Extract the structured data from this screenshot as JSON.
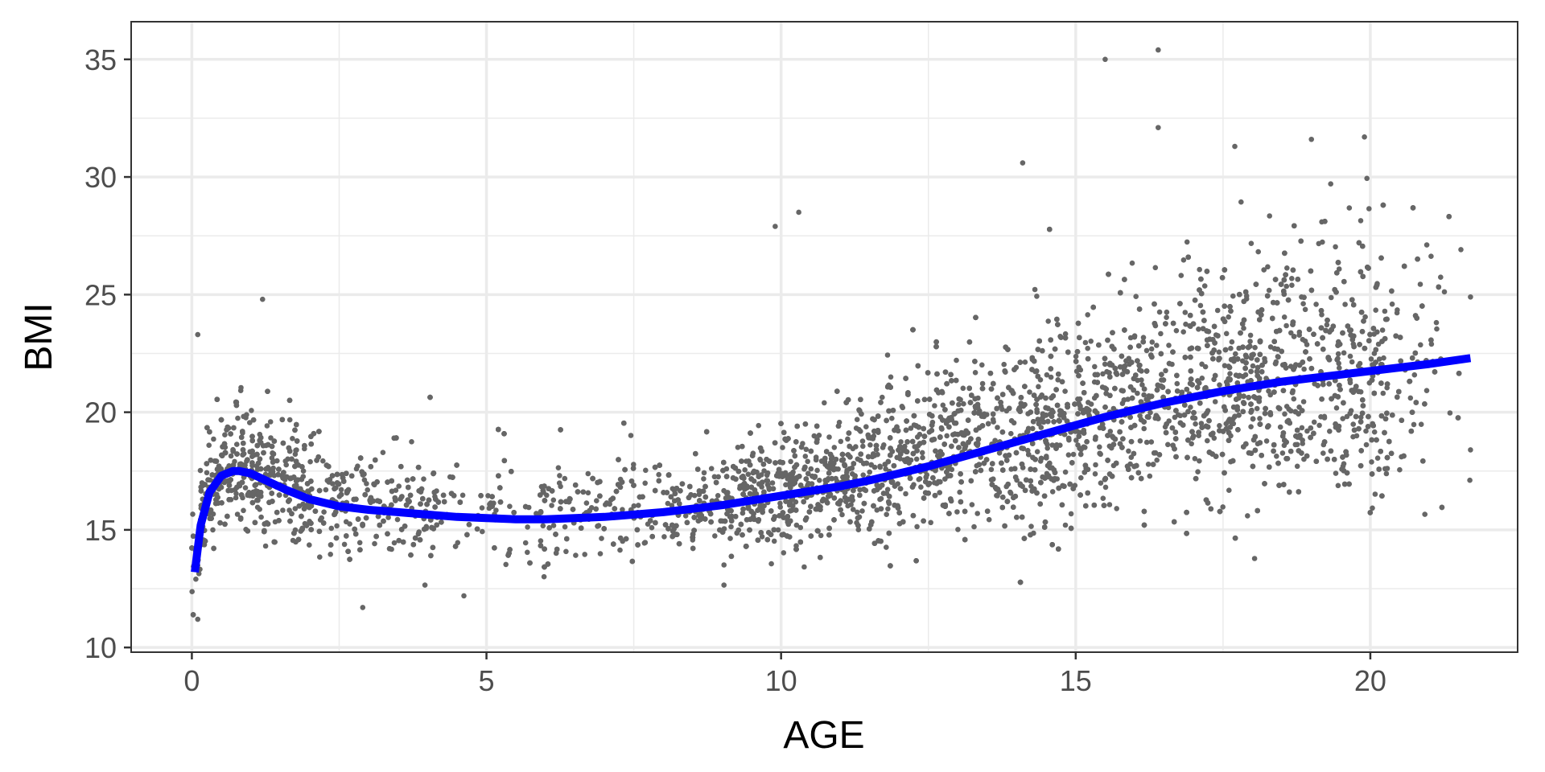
{
  "chart_data": {
    "type": "scatter",
    "xlabel": "AGE",
    "ylabel": "BMI",
    "xlim": [
      -1.03,
      22.5
    ],
    "ylim": [
      9.8,
      36.6
    ],
    "x_ticks": [
      0,
      5,
      10,
      15,
      20
    ],
    "y_ticks": [
      10,
      15,
      20,
      25,
      30,
      35
    ],
    "grid": true,
    "legend": "none",
    "series": [
      {
        "type": "scatter",
        "color": "#666666",
        "approx_points": 7000,
        "age_range": [
          0,
          21.7
        ],
        "notable_points": [
          {
            "x": 0.1,
            "y": 11.2
          },
          {
            "x": 0.1,
            "y": 23.3
          },
          {
            "x": 1.2,
            "y": 24.8
          },
          {
            "x": 2.9,
            "y": 11.7
          },
          {
            "x": 9.9,
            "y": 27.9
          },
          {
            "x": 10.3,
            "y": 28.5
          },
          {
            "x": 14.1,
            "y": 30.6
          },
          {
            "x": 15.5,
            "y": 35.0
          },
          {
            "x": 16.4,
            "y": 35.4
          },
          {
            "x": 16.4,
            "y": 32.1
          },
          {
            "x": 17.7,
            "y": 31.3
          },
          {
            "x": 19.0,
            "y": 31.6
          },
          {
            "x": 19.9,
            "y": 31.7
          },
          {
            "x": 21.7,
            "y": 24.9
          },
          {
            "x": 21.7,
            "y": 18.4
          }
        ]
      },
      {
        "type": "line",
        "color": "#0000ff",
        "x": [
          0.05,
          0.15,
          0.3,
          0.5,
          0.7,
          0.8,
          1.0,
          1.3,
          1.6,
          2.0,
          2.5,
          3.0,
          3.5,
          4.0,
          4.5,
          5.0,
          5.5,
          6.0,
          6.5,
          7.0,
          7.5,
          8.0,
          8.5,
          9.0,
          9.5,
          10.0,
          10.5,
          11.0,
          11.5,
          12.0,
          12.5,
          13.0,
          13.5,
          14.0,
          14.5,
          15.0,
          15.5,
          16.0,
          16.5,
          17.0,
          17.5,
          18.0,
          18.5,
          19.0,
          19.5,
          20.0,
          20.5,
          21.0,
          21.7
        ],
        "y": [
          13.2,
          15.2,
          16.6,
          17.3,
          17.5,
          17.5,
          17.4,
          17.05,
          16.7,
          16.3,
          16.0,
          15.85,
          15.75,
          15.65,
          15.55,
          15.5,
          15.45,
          15.45,
          15.5,
          15.55,
          15.65,
          15.75,
          15.9,
          16.05,
          16.25,
          16.45,
          16.65,
          16.85,
          17.1,
          17.4,
          17.7,
          18.05,
          18.4,
          18.75,
          19.1,
          19.45,
          19.8,
          20.1,
          20.4,
          20.65,
          20.9,
          21.1,
          21.3,
          21.45,
          21.6,
          21.75,
          21.9,
          22.05,
          22.3
        ]
      }
    ]
  }
}
